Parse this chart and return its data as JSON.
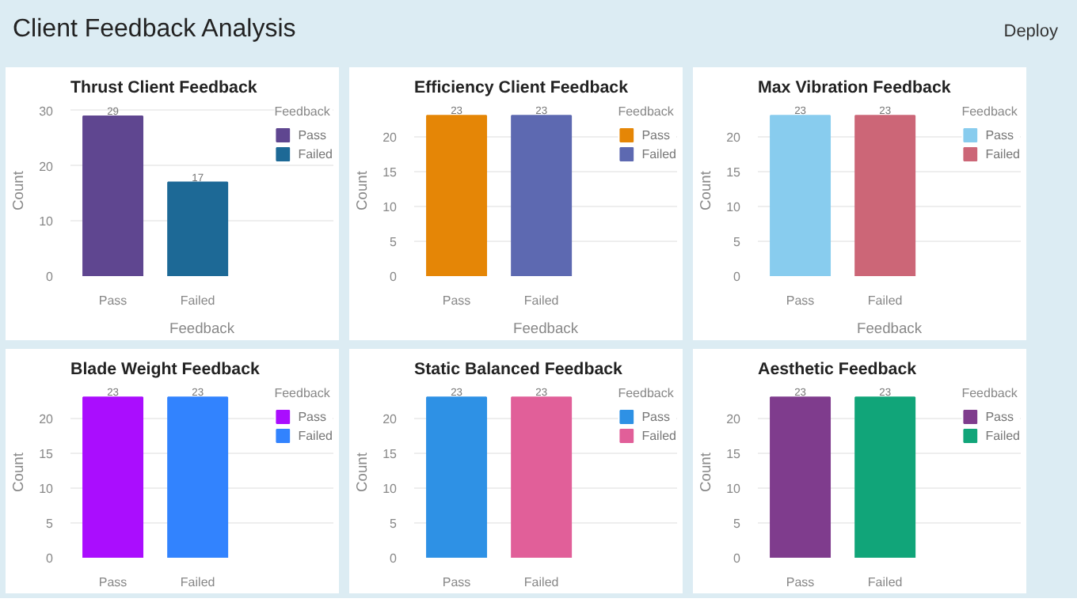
{
  "chart_data": [
    {
      "type": "other",
      "title": "Client Feedback Analysis",
      "annotations": [
        "Deploy"
      ]
    },
    {
      "type": "bar",
      "title": "Thrust Client Feedback",
      "xlabel": "Feedback",
      "ylabel": "Count",
      "legend_title": "Feedback",
      "categories": [
        "Pass",
        "Failed"
      ],
      "series": [
        {
          "name": "Pass",
          "color": "#5f4690",
          "values": [
            29,
            null
          ]
        },
        {
          "name": "Failed",
          "color": "#1d6996",
          "values": [
            null,
            17
          ]
        }
      ],
      "ylim": [
        0,
        31
      ],
      "yticks": [
        0,
        10,
        20,
        30
      ],
      "grid": "y",
      "legend": "right",
      "data_labels": true
    },
    {
      "type": "bar",
      "title": "Efficiency Client Feedback",
      "xlabel": "Feedback",
      "ylabel": "Count",
      "legend_title": "Feedback",
      "categories": [
        "Pass",
        "Failed"
      ],
      "series": [
        {
          "name": "Pass",
          "color": "#e58606",
          "values": [
            23,
            null
          ]
        },
        {
          "name": "Failed",
          "color": "#5d69b1",
          "values": [
            null,
            23
          ]
        }
      ],
      "ylim": [
        0,
        24.5
      ],
      "yticks": [
        0,
        5,
        10,
        15,
        20
      ],
      "grid": "y",
      "legend": "right",
      "data_labels": true
    },
    {
      "type": "bar",
      "title": "Max Vibration Feedback",
      "xlabel": "Feedback",
      "ylabel": "Count",
      "legend_title": "Feedback",
      "categories": [
        "Pass",
        "Failed"
      ],
      "series": [
        {
          "name": "Pass",
          "color": "#88ccee",
          "values": [
            23,
            null
          ]
        },
        {
          "name": "Failed",
          "color": "#cc6677",
          "values": [
            null,
            23
          ]
        }
      ],
      "ylim": [
        0,
        24.5
      ],
      "yticks": [
        0,
        5,
        10,
        15,
        20
      ],
      "grid": "y",
      "legend": "right",
      "data_labels": true
    },
    {
      "type": "bar",
      "title": "Blade Weight Feedback",
      "ylabel": "Count",
      "legend_title": "Feedback",
      "categories": [
        "Pass",
        "Failed"
      ],
      "series": [
        {
          "name": "Pass",
          "color": "#aa0dfe",
          "values": [
            23,
            null
          ]
        },
        {
          "name": "Failed",
          "color": "#3283fe",
          "values": [
            null,
            23
          ]
        }
      ],
      "ylim": [
        0,
        24.5
      ],
      "yticks": [
        0,
        5,
        10,
        15,
        20
      ],
      "grid": "y",
      "legend": "right",
      "data_labels": true
    },
    {
      "type": "bar",
      "title": "Static Balanced Feedback",
      "ylabel": "Count",
      "legend_title": "Feedback",
      "categories": [
        "Pass",
        "Failed"
      ],
      "series": [
        {
          "name": "Pass",
          "color": "#2e91e5",
          "values": [
            23,
            null
          ]
        },
        {
          "name": "Failed",
          "color": "#e15f99",
          "values": [
            null,
            23
          ]
        }
      ],
      "ylim": [
        0,
        24.5
      ],
      "yticks": [
        0,
        5,
        10,
        15,
        20
      ],
      "grid": "y",
      "legend": "right",
      "data_labels": true
    },
    {
      "type": "bar",
      "title": "Aesthetic Feedback",
      "ylabel": "Count",
      "legend_title": "Feedback",
      "categories": [
        "Pass",
        "Failed"
      ],
      "series": [
        {
          "name": "Pass",
          "color": "#7f3c8d",
          "values": [
            23,
            null
          ]
        },
        {
          "name": "Failed",
          "color": "#11a579",
          "values": [
            null,
            23
          ]
        }
      ],
      "ylim": [
        0,
        24.5
      ],
      "yticks": [
        0,
        5,
        10,
        15,
        20
      ],
      "grid": "y",
      "legend": "right",
      "data_labels": true
    }
  ]
}
